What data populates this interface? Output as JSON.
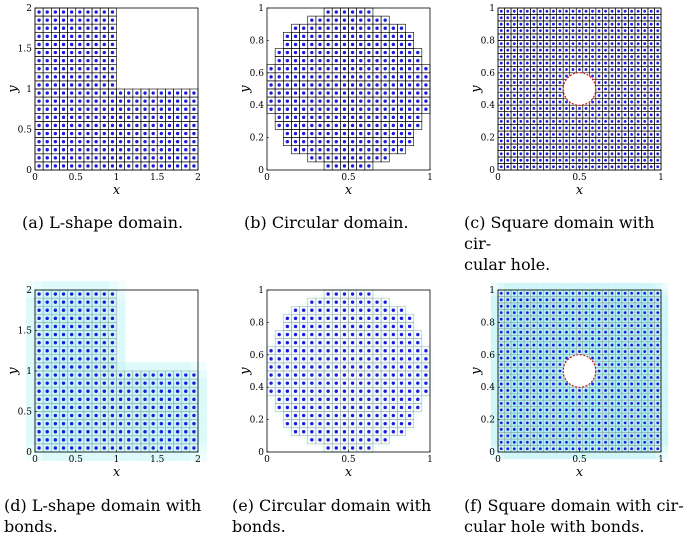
{
  "chart_data": [
    {
      "type": "scatter",
      "subfigure": "(a)",
      "caption": "(a) L-shape domain.",
      "xlabel": "x",
      "ylabel": "y",
      "xlim": [
        0,
        2
      ],
      "ylim": [
        0,
        2
      ],
      "xticks": [
        "0",
        "0.5",
        "1",
        "1.5",
        "2"
      ],
      "yticks": [
        "0",
        "0.5",
        "1",
        "1.5",
        "2"
      ],
      "domain": "L-shape",
      "grid_spacing": 0.1,
      "bonds": false,
      "marker_color": "#1a1adb"
    },
    {
      "type": "scatter",
      "subfigure": "(b)",
      "caption": "(b) Circular domain.",
      "xlabel": "x",
      "ylabel": "y",
      "xlim": [
        0,
        1
      ],
      "ylim": [
        0,
        1
      ],
      "xticks": [
        "0",
        "0.5",
        "1"
      ],
      "yticks": [
        "0",
        "0.2",
        "0.4",
        "0.6",
        "0.8",
        "1"
      ],
      "domain": "circle",
      "center": [
        0.5,
        0.5
      ],
      "radius": 0.5,
      "grid_spacing": 0.05,
      "bonds": false,
      "marker_color": "#1a1adb"
    },
    {
      "type": "scatter",
      "subfigure": "(c)",
      "caption": "(c) Square domain with circular hole.",
      "xlabel": "x",
      "ylabel": "y",
      "xlim": [
        0,
        1
      ],
      "ylim": [
        0,
        1
      ],
      "xticks": [
        "0",
        "0.5",
        "1"
      ],
      "yticks": [
        "0",
        "0.2",
        "0.4",
        "0.6",
        "0.8",
        "1"
      ],
      "domain": "square-with-hole",
      "hole_center": [
        0.5,
        0.5
      ],
      "hole_radius": 0.1,
      "grid_spacing": 0.04,
      "bonds": false,
      "marker_color": "#1a1adb",
      "hole_color": "#cc0000"
    },
    {
      "type": "scatter",
      "subfigure": "(d)",
      "caption": "(d) L-shape domain with bonds.",
      "xlabel": "x",
      "ylabel": "y",
      "xlim": [
        0,
        2
      ],
      "ylim": [
        0,
        2
      ],
      "xticks": [
        "0",
        "0.5",
        "1",
        "1.5",
        "2"
      ],
      "yticks": [
        "0",
        "0.5",
        "1",
        "1.5",
        "2"
      ],
      "domain": "L-shape",
      "grid_spacing": 0.1,
      "bonds": true,
      "marker_color": "#1a1adb",
      "bond_color": "#7fe9ef"
    },
    {
      "type": "scatter",
      "subfigure": "(e)",
      "caption": "(e) Circular domain with bonds.",
      "xlabel": "x",
      "ylabel": "y",
      "xlim": [
        0,
        1
      ],
      "ylim": [
        0,
        1
      ],
      "xticks": [
        "0",
        "0.5",
        "1"
      ],
      "yticks": [
        "0",
        "0.2",
        "0.4",
        "0.6",
        "0.8",
        "1"
      ],
      "domain": "circle",
      "center": [
        0.5,
        0.5
      ],
      "radius": 0.5,
      "grid_spacing": 0.05,
      "bonds": true,
      "marker_color": "#1a1adb",
      "bond_color": "#a6eef3"
    },
    {
      "type": "scatter",
      "subfigure": "(f)",
      "caption": "(f) Square domain with circular hole with bonds.",
      "xlabel": "x",
      "ylabel": "y",
      "xlim": [
        0,
        1
      ],
      "ylim": [
        0,
        1
      ],
      "xticks": [
        "0",
        "0.5",
        "1"
      ],
      "yticks": [
        "0",
        "0.2",
        "0.4",
        "0.6",
        "0.8",
        "1"
      ],
      "domain": "square-with-hole",
      "hole_center": [
        0.5,
        0.5
      ],
      "hole_radius": 0.1,
      "grid_spacing": 0.04,
      "bonds": true,
      "marker_color": "#1a1adb",
      "bond_color": "#4fdde6",
      "hole_color": "#cc0000"
    }
  ],
  "captions": {
    "a": [
      "(a) L-shape domain."
    ],
    "b": [
      "(b) Circular domain."
    ],
    "c": [
      "(c) Square domain with cir-",
      "cular hole."
    ],
    "d": [
      "(d) L-shape domain with",
      "bonds."
    ],
    "e": [
      "(e) Circular domain with",
      "bonds."
    ],
    "f": [
      "(f) Square domain with cir-",
      "cular hole with bonds."
    ]
  }
}
